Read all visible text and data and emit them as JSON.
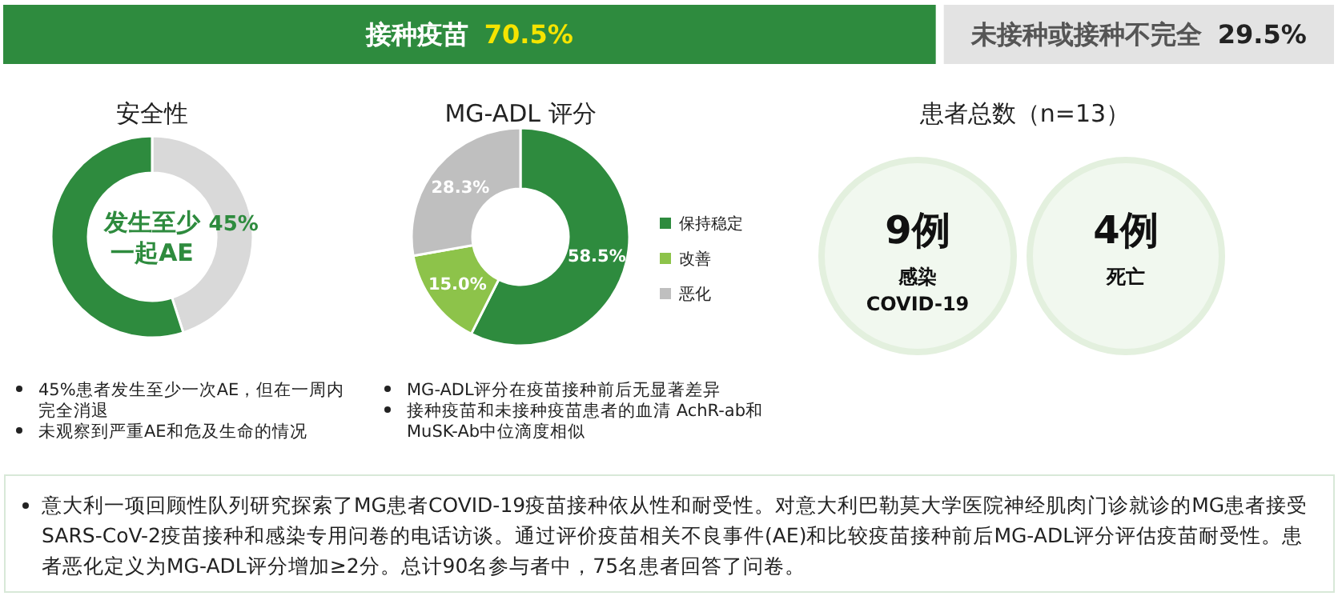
{
  "chart_data": [
    {
      "type": "other",
      "categories": [
        "接种疫苗",
        "未接种或接种不完全"
      ],
      "values": [
        70.5,
        29.5
      ],
      "value_labels": [
        "70.5%",
        "29.5%"
      ],
      "colors": [
        "#2e8b3e",
        "#e3e3e3"
      ],
      "annotations": [
        "意大利一项回顾性队列研究探索了MG患者COVID-19疫苗接种依从性和耐受性。对意大利巴勒莫大学医院神经肌肉门诊就诊的MG患者接受SARS-CoV-2疫苗接种和感染专用问卷的电话访谈。通过评价疫苗相关不良事件(AE)和比较疫苗接种前后MG-ADL评分评估疫苗耐受性。患者恶化定义为MG-ADL评分增加≥2分。总计90名参与者中，75名患者回答了问卷。"
      ]
    },
    {
      "type": "donut",
      "title": "安全性",
      "categories": [
        null,
        null
      ],
      "values": [
        45,
        55
      ],
      "colors": [
        "#d9d9d9",
        "#2e8b3e"
      ],
      "value_labels": [
        "45%",
        null
      ],
      "annotations": [
        "发生至少一起AE",
        "45%患者发生至少一次AE，但在一周内完全消退",
        "未观察到严重AE和危及生命的情况"
      ]
    },
    {
      "type": "donut",
      "title": "MG-ADL 评分",
      "categories": [
        "保持稳定",
        "改善",
        "恶化"
      ],
      "values": [
        58.5,
        15.0,
        28.3
      ],
      "colors": [
        "#2e8b3e",
        "#8dc34a",
        "#bfbfbf"
      ],
      "value_labels": [
        "58.5%",
        "15.0%",
        "28.3%"
      ],
      "legend": "right",
      "annotations": [
        "MG-ADL评分在疫苗接种前后无显著差异",
        "接种疫苗和未接种疫苗患者的血清 AchR-ab和MuSK-Ab中位滴度相似"
      ]
    },
    {
      "type": "other",
      "title": "患者总数（n=13）",
      "categories": [
        "感染 COVID-19",
        "死亡"
      ],
      "value_labels": [
        "9例",
        "4例"
      ]
    }
  ]
}
